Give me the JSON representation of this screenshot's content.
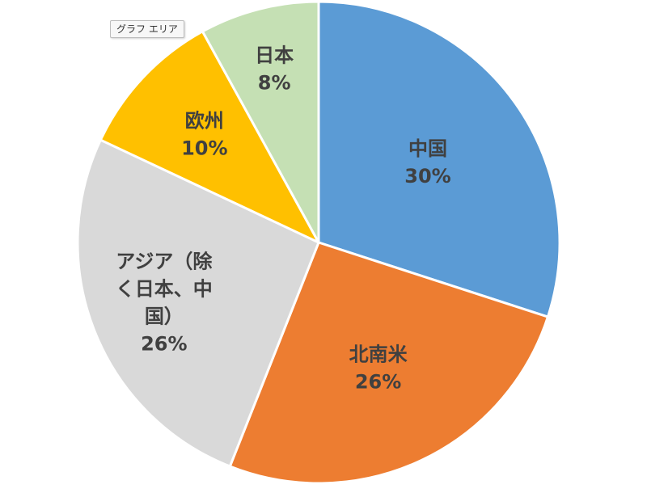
{
  "tooltip": "グラフ エリア",
  "chart_data": {
    "type": "pie",
    "start_angle_deg": 0,
    "direction": "clockwise",
    "slices": [
      {
        "label_lines": [
          "中国"
        ],
        "value": 30,
        "value_label": "30%",
        "color": "#5b9bd5"
      },
      {
        "label_lines": [
          "北南米"
        ],
        "value": 26,
        "value_label": "26%",
        "color": "#ed7d31"
      },
      {
        "label_lines": [
          "アジア（除",
          "く日本、中",
          "国）"
        ],
        "value": 26,
        "value_label": "26%",
        "color": "#d9d9d9"
      },
      {
        "label_lines": [
          "欧州"
        ],
        "value": 10,
        "value_label": "10%",
        "color": "#ffc000"
      },
      {
        "label_lines": [
          "日本"
        ],
        "value": 8,
        "value_label": "8%",
        "color": "#c5e0b4"
      }
    ],
    "data_labels": "category and percentage",
    "legend": "none",
    "slice_border_color": "#ffffff"
  }
}
